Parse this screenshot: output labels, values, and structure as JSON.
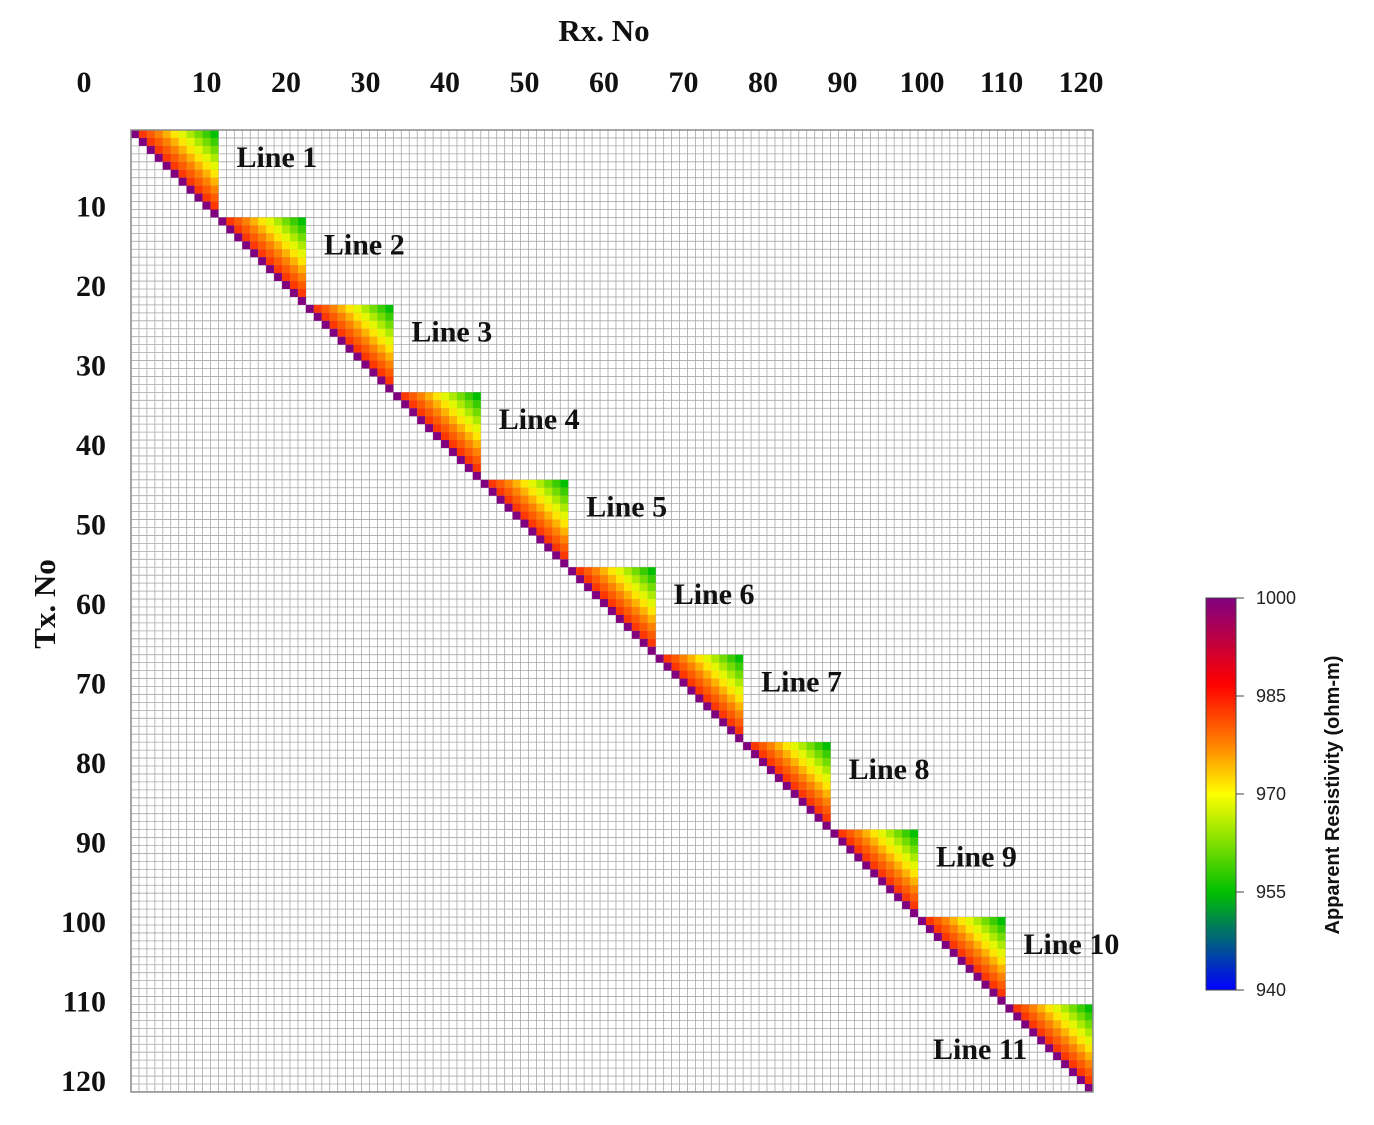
{
  "chart_data": {
    "type": "heatmap",
    "xlabel": "Rx. No",
    "ylabel": "Tx. No",
    "x_ticks": [
      "0",
      "10",
      "20",
      "30",
      "40",
      "50",
      "60",
      "70",
      "80",
      "90",
      "100",
      "110",
      "120"
    ],
    "y_ticks": [
      "10",
      "20",
      "30",
      "40",
      "50",
      "60",
      "70",
      "80",
      "90",
      "100",
      "110",
      "120"
    ],
    "xlim": [
      0,
      121
    ],
    "ylim": [
      0,
      121
    ],
    "grid": true,
    "colorbar": {
      "title": "Apparent Resistivity (ohm-m)",
      "ticks": [
        "1000",
        "985",
        "970",
        "955",
        "940"
      ],
      "range": [
        940,
        1000
      ],
      "colors": [
        "#0000ff",
        "#00c000",
        "#ffff00",
        "#ff8800",
        "#ff0000",
        "#800080"
      ]
    },
    "blocks": [
      {
        "label": "Line 1",
        "start": 1,
        "size": 11
      },
      {
        "label": "Line 2",
        "start": 12,
        "size": 11
      },
      {
        "label": "Line 3",
        "start": 23,
        "size": 11
      },
      {
        "label": "Line 4",
        "start": 34,
        "size": 11
      },
      {
        "label": "Line 5",
        "start": 45,
        "size": 11
      },
      {
        "label": "Line 6",
        "start": 56,
        "size": 11
      },
      {
        "label": "Line 7",
        "start": 67,
        "size": 11
      },
      {
        "label": "Line 8",
        "start": 78,
        "size": 11
      },
      {
        "label": "Line 9",
        "start": 89,
        "size": 11
      },
      {
        "label": "Line 10",
        "start": 100,
        "size": 11
      },
      {
        "label": "Line 11",
        "start": 111,
        "size": 11
      }
    ],
    "block_values": {
      "diagonal": 1000,
      "near_diagonal": 985,
      "far_corner": 955
    }
  }
}
